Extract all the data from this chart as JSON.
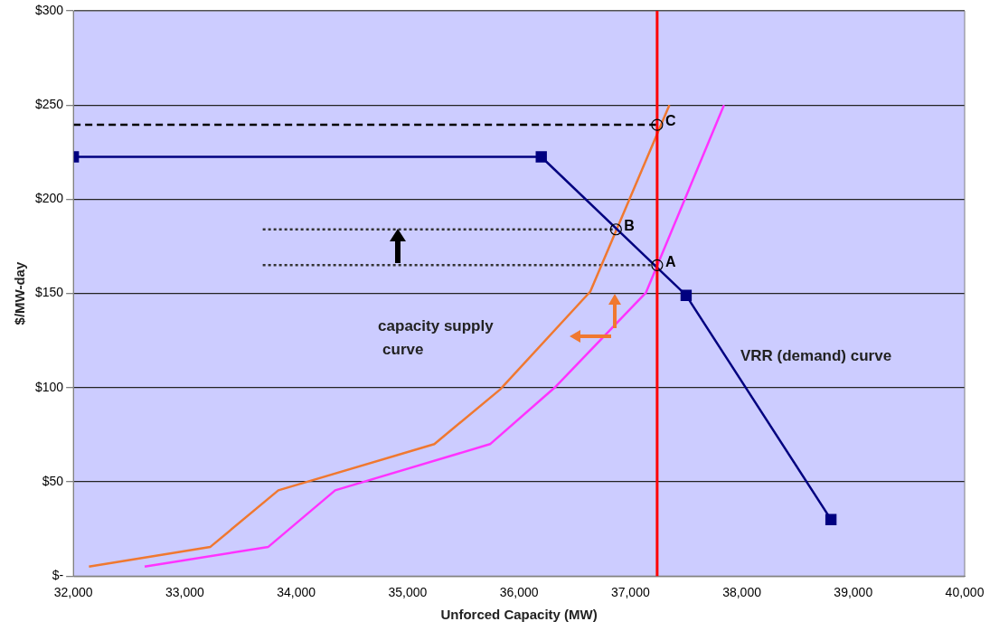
{
  "chart_data": {
    "type": "line",
    "xlabel": "Unforced Capacity (MW)",
    "ylabel": "$/MW-day",
    "xlim": [
      32000,
      40000
    ],
    "ylim": [
      0,
      300
    ],
    "xticks": [
      {
        "value": 32000,
        "label": "32,000"
      },
      {
        "value": 33000,
        "label": "33,000"
      },
      {
        "value": 34000,
        "label": "34,000"
      },
      {
        "value": 35000,
        "label": "35,000"
      },
      {
        "value": 36000,
        "label": "36,000"
      },
      {
        "value": 37000,
        "label": "37,000"
      },
      {
        "value": 38000,
        "label": "38,000"
      },
      {
        "value": 39000,
        "label": "39,000"
      },
      {
        "value": 40000,
        "label": "40,000"
      }
    ],
    "yticks": [
      {
        "value": 0,
        "label": "$-"
      },
      {
        "value": 50,
        "label": "$50"
      },
      {
        "value": 100,
        "label": "$100"
      },
      {
        "value": 150,
        "label": "$150"
      },
      {
        "value": 200,
        "label": "$200"
      },
      {
        "value": 250,
        "label": "$250"
      },
      {
        "value": 300,
        "label": "$300"
      }
    ],
    "grid": "y",
    "legend": false,
    "series": [
      {
        "name": "VRR (demand) curve",
        "color": "#000080",
        "marker": "square",
        "x": [
          32000,
          36200,
          37500,
          38800
        ],
        "values": [
          222.5,
          222.5,
          149,
          30
        ]
      },
      {
        "name": "capacity supply curve",
        "color": "#f07830",
        "marker": "none",
        "x": [
          32140,
          33230,
          33840,
          35240,
          35830,
          36640,
          37350
        ],
        "values": [
          5,
          15.5,
          45.5,
          70,
          99,
          151,
          250
        ]
      },
      {
        "color": "#ff33ff",
        "marker": "none",
        "x": [
          32640,
          33750,
          34350,
          35740,
          36320,
          37140,
          37840
        ],
        "values": [
          5,
          15.5,
          45.5,
          70,
          100,
          150.5,
          250
        ]
      },
      {
        "color": "#000000",
        "line_style": "dashed",
        "x": [
          32000,
          37240
        ],
        "values": [
          239.5,
          239.5
        ]
      },
      {
        "color": "#333333",
        "line_style": "dotted",
        "x": [
          33700,
          36870
        ],
        "values": [
          184,
          184
        ]
      },
      {
        "color": "#333333",
        "line_style": "dotted",
        "x": [
          33700,
          37240
        ],
        "values": [
          165,
          165
        ]
      }
    ],
    "ref_lines": [
      {
        "axis": "x",
        "value": 37240,
        "color": "#ff0000"
      }
    ],
    "annotations": [
      "C",
      "B",
      "A"
    ]
  }
}
